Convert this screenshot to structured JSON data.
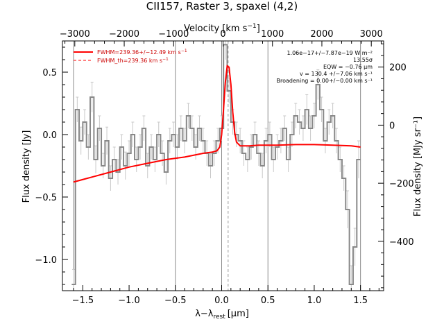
{
  "chart_data": {
    "type": "line",
    "title": "CII157, Raster 3, spaxel (4,2)",
    "xlabel_main": "λ−λ",
    "xlabel_sub": "rest",
    "xlabel_unit": "[μm]",
    "ylabel_left": "Flux density [Jy]",
    "ylabel_right": "Flux density [MJy sr⁻¹]",
    "x2label_main": "Velocity [km s",
    "x2label_sup": "−1",
    "x2label_end": "]",
    "xlim": [
      -1.72,
      1.75
    ],
    "ylim": [
      -1.25,
      0.75
    ],
    "x2lim": [
      -3250,
      3250
    ],
    "y2lim": [
      -570,
      290
    ],
    "x_ticks": [
      -1.5,
      -1.0,
      -0.5,
      0.0,
      0.5,
      1.0,
      1.5
    ],
    "x_tick_labels": [
      "−1.5",
      "−1.0",
      "−0.5",
      "0.0",
      "0.5",
      "1.0",
      "1.5"
    ],
    "y_ticks": [
      -1.0,
      -0.5,
      0.0,
      0.5
    ],
    "y_tick_labels": [
      "−1.0",
      "−0.5",
      "0.0",
      "0.5"
    ],
    "x2_ticks": [
      -3000,
      -2000,
      -1000,
      0,
      1000,
      2000,
      3000
    ],
    "x2_tick_labels": [
      "−3000",
      "−2000",
      "−1000",
      "0",
      "1000",
      "2000",
      "3000"
    ],
    "y2_ticks": [
      200,
      0,
      -200,
      -400
    ],
    "y2_tick_labels": [
      "200",
      "0",
      "−200",
      "−400"
    ],
    "vertical_lines": [
      -1.6,
      -0.5,
      0.0,
      0.5,
      1.5
    ],
    "rest_line": 0.07,
    "legend": [
      {
        "label": "FWHM=239.36+/−12.49 km s",
        "sup": "−1",
        "style": "solid"
      },
      {
        "label": "FWHM_th=239.36 km s",
        "sup": "−1",
        "style": "dashed"
      }
    ],
    "annotations": [
      "1.06e−17+/−7.87e−19 W m⁻²",
      "13.55σ",
      "EQW = −0.76 μm",
      "v = 130.4 +/−7.06 km s⁻¹",
      "Broadening = 0.00+/−0.00 km s⁻¹"
    ],
    "series": [
      {
        "name": "spectrum",
        "color": "#888888",
        "x": [
          -1.6,
          -1.56,
          -1.52,
          -1.48,
          -1.44,
          -1.4,
          -1.36,
          -1.32,
          -1.28,
          -1.24,
          -1.2,
          -1.16,
          -1.12,
          -1.08,
          -1.04,
          -1.0,
          -0.96,
          -0.92,
          -0.88,
          -0.84,
          -0.8,
          -0.76,
          -0.72,
          -0.68,
          -0.64,
          -0.6,
          -0.56,
          -0.52,
          -0.48,
          -0.44,
          -0.4,
          -0.36,
          -0.32,
          -0.28,
          -0.24,
          -0.2,
          -0.16,
          -0.12,
          -0.08,
          -0.04,
          0.0,
          0.04,
          0.08,
          0.12,
          0.16,
          0.2,
          0.24,
          0.28,
          0.32,
          0.36,
          0.4,
          0.44,
          0.48,
          0.52,
          0.56,
          0.6,
          0.64,
          0.68,
          0.72,
          0.76,
          0.8,
          0.84,
          0.88,
          0.92,
          0.96,
          1.0,
          1.04,
          1.08,
          1.12,
          1.16,
          1.2,
          1.24,
          1.28,
          1.32,
          1.36,
          1.4,
          1.44,
          1.48
        ],
        "y": [
          -1.2,
          0.2,
          -0.05,
          0.1,
          -0.1,
          0.3,
          -0.2,
          0.05,
          -0.25,
          -0.05,
          -0.35,
          -0.2,
          -0.3,
          -0.1,
          -0.25,
          -0.15,
          0.0,
          -0.2,
          -0.1,
          0.05,
          -0.25,
          -0.1,
          -0.2,
          0.0,
          -0.15,
          -0.3,
          -0.05,
          0.0,
          -0.1,
          0.05,
          -0.05,
          0.15,
          0.05,
          -0.1,
          0.05,
          -0.05,
          -0.15,
          -0.25,
          -0.15,
          -0.05,
          0.05,
          0.72,
          0.35,
          0.1,
          0.0,
          -0.05,
          -0.15,
          -0.2,
          -0.1,
          0.0,
          -0.15,
          -0.25,
          -0.05,
          0.0,
          -0.2,
          -0.1,
          -0.05,
          0.05,
          -0.2,
          0.0,
          0.15,
          0.1,
          0.05,
          0.2,
          0.05,
          0.15,
          0.4,
          0.2,
          -0.05,
          0.1,
          0.15,
          -0.05,
          -0.2,
          -0.35,
          -0.6,
          -1.2,
          -0.9,
          -0.2
        ],
        "err": [
          0.12,
          0.1,
          0.11,
          0.1,
          0.1,
          0.12,
          0.11,
          0.1,
          0.1,
          0.11,
          0.1,
          0.1,
          0.1,
          0.1,
          0.11,
          0.1,
          0.1,
          0.1,
          0.1,
          0.1,
          0.1,
          0.1,
          0.1,
          0.1,
          0.1,
          0.1,
          0.1,
          0.1,
          0.1,
          0.1,
          0.1,
          0.1,
          0.1,
          0.1,
          0.1,
          0.1,
          0.1,
          0.1,
          0.1,
          0.1,
          0.1,
          0.12,
          0.1,
          0.1,
          0.1,
          0.1,
          0.1,
          0.1,
          0.1,
          0.1,
          0.1,
          0.1,
          0.1,
          0.1,
          0.1,
          0.1,
          0.1,
          0.1,
          0.1,
          0.1,
          0.1,
          0.1,
          0.1,
          0.12,
          0.1,
          0.1,
          0.12,
          0.1,
          0.1,
          0.1,
          0.1,
          0.1,
          0.1,
          0.1,
          0.15,
          0.15,
          0.15,
          0.15
        ]
      },
      {
        "name": "fit",
        "color": "#ff0000",
        "x": [
          -1.6,
          -1.4,
          -1.2,
          -1.0,
          -0.8,
          -0.6,
          -0.4,
          -0.2,
          -0.1,
          -0.05,
          -0.02,
          0.0,
          0.02,
          0.04,
          0.06,
          0.08,
          0.1,
          0.12,
          0.14,
          0.16,
          0.2,
          0.25,
          0.3,
          0.4,
          0.6,
          0.8,
          1.0,
          1.2,
          1.4,
          1.5
        ],
        "y": [
          -0.38,
          -0.34,
          -0.3,
          -0.26,
          -0.23,
          -0.2,
          -0.18,
          -0.15,
          -0.14,
          -0.13,
          -0.1,
          0.0,
          0.2,
          0.42,
          0.55,
          0.54,
          0.4,
          0.18,
          0.02,
          -0.06,
          -0.09,
          -0.09,
          -0.09,
          -0.085,
          -0.085,
          -0.08,
          -0.08,
          -0.085,
          -0.09,
          -0.1
        ]
      }
    ]
  }
}
